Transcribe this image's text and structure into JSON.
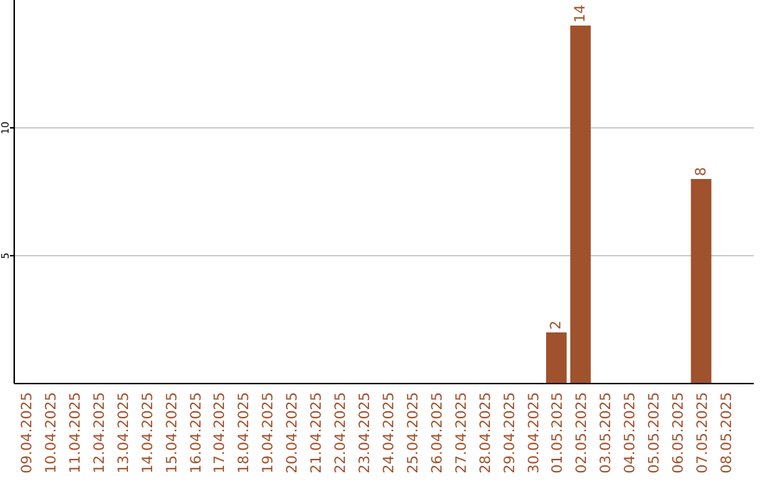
{
  "chart_data": {
    "type": "bar",
    "categories": [
      "09.04.2025",
      "10.04.2025",
      "11.04.2025",
      "12.04.2025",
      "13.04.2025",
      "14.04.2025",
      "15.04.2025",
      "16.04.2025",
      "17.04.2025",
      "18.04.2025",
      "19.04.2025",
      "20.04.2025",
      "21.04.2025",
      "22.04.2025",
      "23.04.2025",
      "24.04.2025",
      "25.04.2025",
      "26.04.2025",
      "27.04.2025",
      "28.04.2025",
      "29.04.2025",
      "30.04.2025",
      "01.05.2025",
      "02.05.2025",
      "03.05.2025",
      "04.05.2025",
      "05.05.2025",
      "06.05.2025",
      "07.05.2025",
      "08.05.2025"
    ],
    "values": [
      0,
      0,
      0,
      0,
      0,
      0,
      0,
      0,
      0,
      0,
      0,
      0,
      0,
      0,
      0,
      0,
      0,
      0,
      0,
      0,
      0,
      0,
      2,
      14,
      0,
      0,
      0,
      0,
      8,
      0
    ],
    "value_labels": [
      null,
      null,
      null,
      null,
      null,
      null,
      null,
      null,
      null,
      null,
      null,
      null,
      null,
      null,
      null,
      null,
      null,
      null,
      null,
      null,
      null,
      null,
      "2",
      "14",
      null,
      null,
      null,
      null,
      "8",
      null
    ],
    "color": "#a0522d",
    "ylim": [
      0,
      15
    ],
    "yticks": [
      5,
      10
    ],
    "grid": "y"
  }
}
